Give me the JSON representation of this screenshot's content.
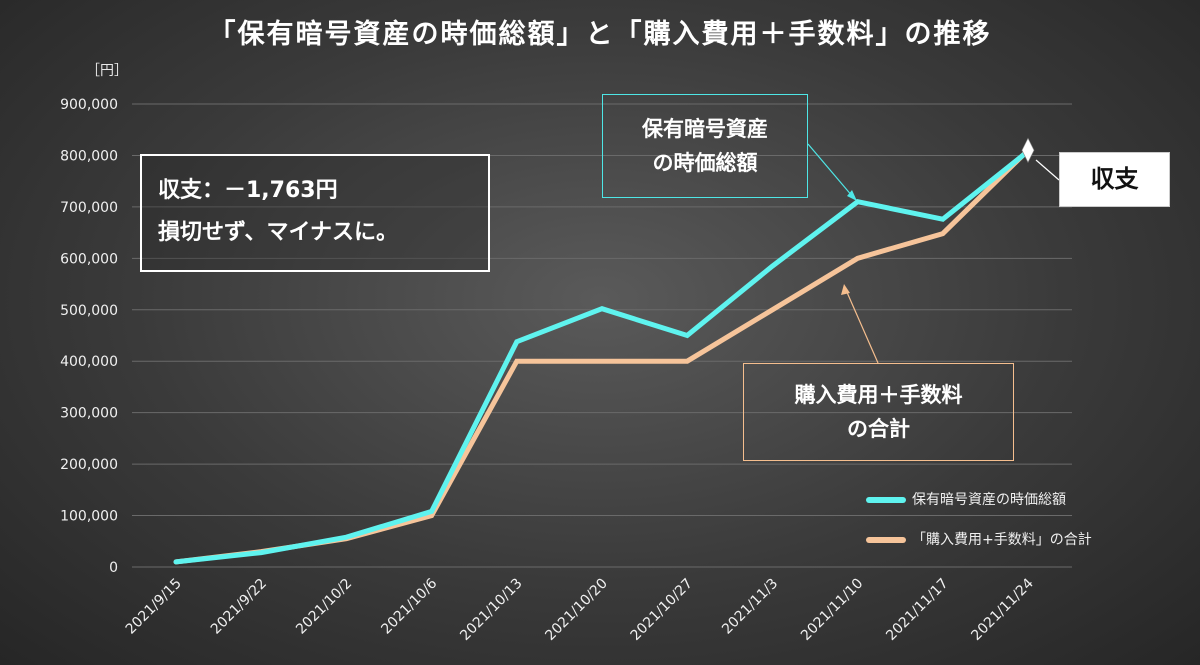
{
  "title": "「保有暗号資産の時価総額」と「購入費用＋手数料」の推移",
  "unit_label": "［円］",
  "annotations": {
    "balance_line1": "収支：－1,763円",
    "balance_line2": "損切せず、マイナスに。",
    "value_box_line1": "保有暗号資産",
    "value_box_line2": "の時価総額",
    "cost_box_line1": "購入費用＋手数料",
    "cost_box_line2": "の合計",
    "shushi": "収支"
  },
  "legend": {
    "value_label": "保有暗号資産の時価総額",
    "cost_label": "「購入費用+手数料」の合計"
  },
  "colors": {
    "value_line": "#5ff3ef",
    "cost_line": "#f6c49a",
    "grid": "#6a6a6a"
  },
  "chart_data": {
    "type": "line",
    "categories": [
      "2021/9/15",
      "2021/9/22",
      "2021/10/2",
      "2021/10/6",
      "2021/10/13",
      "2021/10/20",
      "2021/10/27",
      "2021/11/3",
      "2021/11/10",
      "2021/11/17",
      "2021/11/24"
    ],
    "series": [
      {
        "name": "保有暗号資産の時価総額",
        "values": [
          10000,
          28000,
          58000,
          108000,
          438000,
          502000,
          450000,
          585000,
          710000,
          676000,
          808000
        ]
      },
      {
        "name": "「購入費用+手数料」の合計",
        "values": [
          10000,
          30000,
          55000,
          100000,
          400000,
          400000,
          400000,
          500000,
          600000,
          648000,
          810000
        ]
      }
    ],
    "y_ticks": [
      "0",
      "100,000",
      "200,000",
      "300,000",
      "400,000",
      "500,000",
      "600,000",
      "700,000",
      "800,000",
      "900,000"
    ],
    "ylim": [
      0,
      900000
    ],
    "grid": true,
    "legend_position": "bottom-right"
  }
}
